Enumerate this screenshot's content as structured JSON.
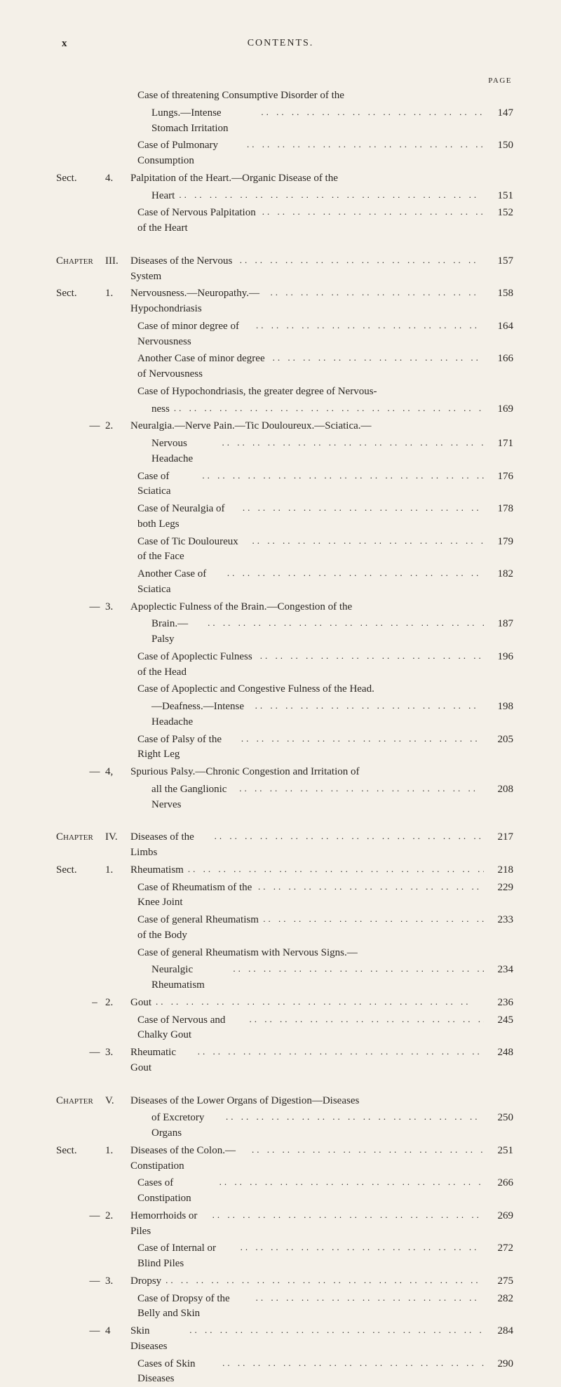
{
  "pageMark": "x",
  "runningHead": "CONTENTS.",
  "pageLabel": "PAGE",
  "leaderChar": ".. .. .. .. .. .. .. .. .. .. .. .. .. .. .. .. .. .. .. .. ..",
  "entries": [
    {
      "col1": "",
      "col2": "",
      "indent": 1,
      "text": "Case of threatening Consumptive Disorder of the",
      "page": ""
    },
    {
      "col1": "",
      "col2": "",
      "indent": 2,
      "text": "Lungs.—Intense Stomach Irritation",
      "page": "147"
    },
    {
      "col1": "",
      "col2": "",
      "indent": 1,
      "text": "Case of Pulmonary Consumption",
      "page": "150"
    },
    {
      "col1": "Sect.",
      "col2": "4.",
      "indent": 0,
      "text": "Palpitation of the Heart.—Organic Disease of the",
      "page": ""
    },
    {
      "col1": "",
      "col2": "",
      "indent": 2,
      "text": "Heart",
      "page": "151"
    },
    {
      "col1": "",
      "col2": "",
      "indent": 1,
      "text": "Case of Nervous Palpitation of the Heart",
      "page": "152"
    },
    {
      "gap": true
    },
    {
      "col1": "Chapter",
      "col2": "III.",
      "indent": 0,
      "text": "Diseases of the Nervous System",
      "page": "157",
      "sc": true
    },
    {
      "col1": "Sect.",
      "col2": "1.",
      "indent": 0,
      "text": "Nervousness.—Neuropathy.—Hypochondriasis",
      "page": "158"
    },
    {
      "col1": "",
      "col2": "",
      "indent": 1,
      "text": "Case of minor degree of Nervousness",
      "page": "164"
    },
    {
      "col1": "",
      "col2": "",
      "indent": 1,
      "text": "Another Case of minor degree of Nervousness",
      "page": "166"
    },
    {
      "col1": "",
      "col2": "",
      "indent": 1,
      "text": "Case of Hypochondriasis, the greater degree of Nervous-",
      "page": ""
    },
    {
      "col1": "",
      "col2": "",
      "indent": 2,
      "text": "ness",
      "page": "169"
    },
    {
      "col1": "—",
      "col2": "2.",
      "indent": 0,
      "text": "Neuralgia.—Nerve Pain.—Tic Douloureux.—Sciatica.—",
      "page": "",
      "dash": true
    },
    {
      "col1": "",
      "col2": "",
      "indent": 2,
      "text": "Nervous Headache",
      "page": "171"
    },
    {
      "col1": "",
      "col2": "",
      "indent": 1,
      "text": "Case of Sciatica",
      "page": "176"
    },
    {
      "col1": "",
      "col2": "",
      "indent": 1,
      "text": "Case of Neuralgia of both Legs",
      "page": "178"
    },
    {
      "col1": "",
      "col2": "",
      "indent": 1,
      "text": "Case of Tic Douloureux of the Face",
      "page": "179"
    },
    {
      "col1": "",
      "col2": "",
      "indent": 1,
      "text": "Another Case of Sciatica",
      "page": "182"
    },
    {
      "col1": "—",
      "col2": "3.",
      "indent": 0,
      "text": "Apoplectic Fulness of the Brain.—Congestion of the",
      "page": "",
      "dash": true
    },
    {
      "col1": "",
      "col2": "",
      "indent": 2,
      "text": "Brain.—Palsy",
      "page": "187"
    },
    {
      "col1": "",
      "col2": "",
      "indent": 1,
      "text": "Case of Apoplectic Fulness of the Head",
      "page": "196"
    },
    {
      "col1": "",
      "col2": "",
      "indent": 1,
      "text": "Case of Apoplectic and Congestive Fulness of the Head.",
      "page": ""
    },
    {
      "col1": "",
      "col2": "",
      "indent": 2,
      "text": "—Deafness.—Intense Headache",
      "page": "198"
    },
    {
      "col1": "",
      "col2": "",
      "indent": 1,
      "text": "Case of Palsy of the Right Leg",
      "page": "205"
    },
    {
      "col1": "—",
      "col2": "4,",
      "indent": 0,
      "text": "Spurious Palsy.—Chronic Congestion and Irritation of",
      "page": "",
      "dash": true
    },
    {
      "col1": "",
      "col2": "",
      "indent": 2,
      "text": "all the Ganglionic Nerves",
      "page": "208"
    },
    {
      "gap": true
    },
    {
      "col1": "Chapter",
      "col2": "IV.",
      "indent": 0,
      "text": "Diseases of the Limbs",
      "page": "217",
      "sc": true
    },
    {
      "col1": "Sect.",
      "col2": "1.",
      "indent": 0,
      "text": "Rheumatism",
      "page": "218"
    },
    {
      "col1": "",
      "col2": "",
      "indent": 1,
      "text": "Case of Rheumatism of the Knee Joint",
      "page": "229"
    },
    {
      "col1": "",
      "col2": "",
      "indent": 1,
      "text": "Case of general Rheumatism of the Body",
      "page": "233"
    },
    {
      "col1": "",
      "col2": "",
      "indent": 1,
      "text": "Case of general Rheumatism with Nervous Signs.—",
      "page": ""
    },
    {
      "col1": "",
      "col2": "",
      "indent": 2,
      "text": "Neuralgic Rheumatism",
      "page": "234"
    },
    {
      "col1": "–",
      "col2": "2.",
      "indent": 0,
      "text": "Gout",
      "page": "236",
      "dash": true
    },
    {
      "col1": "",
      "col2": "",
      "indent": 1,
      "text": "Case of Nervous and Chalky Gout",
      "page": "245"
    },
    {
      "col1": "—",
      "col2": "3.",
      "indent": 0,
      "text": "Rheumatic Gout",
      "page": "248",
      "dash": true
    },
    {
      "gap": true
    },
    {
      "col1": "Chapter",
      "col2": "V.",
      "indent": 0,
      "text": "Diseases of the Lower Organs of Digestion—Diseases",
      "page": "",
      "sc": true
    },
    {
      "col1": "",
      "col2": "",
      "indent": 2,
      "text": "of Excretory Organs",
      "page": "250"
    },
    {
      "col1": "Sect.",
      "col2": "1.",
      "indent": 0,
      "text": "Diseases of the Colon.—Constipation",
      "page": "251"
    },
    {
      "col1": "",
      "col2": "",
      "indent": 1,
      "text": "Cases of Constipation",
      "page": "266"
    },
    {
      "col1": "—",
      "col2": "2.",
      "indent": 0,
      "text": "Hemorrhoids or Piles",
      "page": "269",
      "dash": true
    },
    {
      "col1": "",
      "col2": "",
      "indent": 1,
      "text": "Case of Internal or Blind Piles",
      "page": "272"
    },
    {
      "col1": "—",
      "col2": "3.",
      "indent": 0,
      "text": "Dropsy",
      "page": "275",
      "dash": true
    },
    {
      "col1": "",
      "col2": "",
      "indent": 1,
      "text": "Case of Dropsy of the Belly and Skin",
      "page": "282"
    },
    {
      "col1": "—",
      "col2": "4",
      "indent": 0,
      "text": "Skin Diseases",
      "page": "284",
      "dash": true
    },
    {
      "col1": "",
      "col2": "",
      "indent": 1,
      "text": "Cases of Skin Diseases",
      "page": "290"
    }
  ]
}
